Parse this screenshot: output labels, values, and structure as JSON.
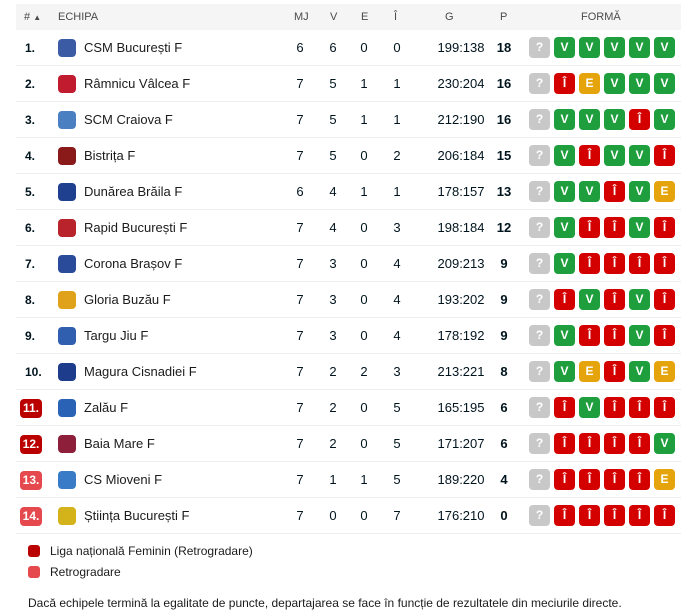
{
  "header": {
    "rank": "#",
    "sort_icon": "▲",
    "team": "ECHIPA",
    "mj": "MJ",
    "v": "V",
    "e": "E",
    "i": "Î",
    "g": "G",
    "p": "P",
    "form": "FORMĂ"
  },
  "form_symbols": {
    "V": "V",
    "I": "Î",
    "E": "E",
    "Q": "?"
  },
  "rows": [
    {
      "rank": "1.",
      "team": "CSM București F",
      "mj": "6",
      "v": "6",
      "e": "0",
      "i": "0",
      "g": "199:138",
      "p": "18",
      "form": [
        "?",
        "V",
        "V",
        "V",
        "V",
        "V"
      ],
      "logo_color": "#3b5ba5",
      "badge": ""
    },
    {
      "rank": "2.",
      "team": "Râmnicu Vâlcea F",
      "mj": "7",
      "v": "5",
      "e": "1",
      "i": "1",
      "g": "230:204",
      "p": "16",
      "form": [
        "?",
        "Î",
        "E",
        "V",
        "V",
        "V"
      ],
      "logo_color": "#c01b2e",
      "badge": ""
    },
    {
      "rank": "3.",
      "team": "SCM Craiova F",
      "mj": "7",
      "v": "5",
      "e": "1",
      "i": "1",
      "g": "212:190",
      "p": "16",
      "form": [
        "?",
        "V",
        "V",
        "V",
        "Î",
        "V"
      ],
      "logo_color": "#4a7fc1",
      "badge": ""
    },
    {
      "rank": "4.",
      "team": "Bistrița F",
      "mj": "7",
      "v": "5",
      "e": "0",
      "i": "2",
      "g": "206:184",
      "p": "15",
      "form": [
        "?",
        "V",
        "Î",
        "V",
        "V",
        "Î"
      ],
      "logo_color": "#8a1a1a",
      "badge": ""
    },
    {
      "rank": "5.",
      "team": "Dunărea Brăila F",
      "mj": "6",
      "v": "4",
      "e": "1",
      "i": "1",
      "g": "178:157",
      "p": "13",
      "form": [
        "?",
        "V",
        "V",
        "Î",
        "V",
        "E"
      ],
      "logo_color": "#1f3f8f",
      "badge": ""
    },
    {
      "rank": "6.",
      "team": "Rapid București F",
      "mj": "7",
      "v": "4",
      "e": "0",
      "i": "3",
      "g": "198:184",
      "p": "12",
      "form": [
        "?",
        "V",
        "Î",
        "Î",
        "V",
        "Î"
      ],
      "logo_color": "#b8232c",
      "badge": ""
    },
    {
      "rank": "7.",
      "team": "Corona Brașov F",
      "mj": "7",
      "v": "3",
      "e": "0",
      "i": "4",
      "g": "209:213",
      "p": "9",
      "form": [
        "?",
        "V",
        "Î",
        "Î",
        "Î",
        "Î"
      ],
      "logo_color": "#2a4a9a",
      "badge": ""
    },
    {
      "rank": "8.",
      "team": "Gloria Buzău F",
      "mj": "7",
      "v": "3",
      "e": "0",
      "i": "4",
      "g": "193:202",
      "p": "9",
      "form": [
        "?",
        "Î",
        "V",
        "Î",
        "V",
        "Î"
      ],
      "logo_color": "#e0a21b",
      "badge": ""
    },
    {
      "rank": "9.",
      "team": "Targu Jiu F",
      "mj": "7",
      "v": "3",
      "e": "0",
      "i": "4",
      "g": "178:192",
      "p": "9",
      "form": [
        "?",
        "V",
        "Î",
        "Î",
        "V",
        "Î"
      ],
      "logo_color": "#2f5fae",
      "badge": ""
    },
    {
      "rank": "10.",
      "team": "Magura Cisnadiei F",
      "mj": "7",
      "v": "2",
      "e": "2",
      "i": "3",
      "g": "213:221",
      "p": "8",
      "form": [
        "?",
        "V",
        "E",
        "Î",
        "V",
        "E"
      ],
      "logo_color": "#1d3c8c",
      "badge": ""
    },
    {
      "rank": "11.",
      "team": "Zalău F",
      "mj": "7",
      "v": "2",
      "e": "0",
      "i": "5",
      "g": "165:195",
      "p": "6",
      "form": [
        "?",
        "Î",
        "V",
        "Î",
        "Î",
        "Î"
      ],
      "logo_color": "#2a62b5",
      "badge": "dark"
    },
    {
      "rank": "12.",
      "team": "Baia Mare F",
      "mj": "7",
      "v": "2",
      "e": "0",
      "i": "5",
      "g": "171:207",
      "p": "6",
      "form": [
        "?",
        "Î",
        "Î",
        "Î",
        "Î",
        "V"
      ],
      "logo_color": "#8d1f3a",
      "badge": "dark"
    },
    {
      "rank": "13.",
      "team": "CS Mioveni F",
      "mj": "7",
      "v": "1",
      "e": "1",
      "i": "5",
      "g": "189:220",
      "p": "4",
      "form": [
        "?",
        "Î",
        "Î",
        "Î",
        "Î",
        "E"
      ],
      "logo_color": "#3a7bc8",
      "badge": "light"
    },
    {
      "rank": "14.",
      "team": "Știința București F",
      "mj": "7",
      "v": "0",
      "e": "0",
      "i": "7",
      "g": "176:210",
      "p": "0",
      "form": [
        "?",
        "Î",
        "Î",
        "Î",
        "Î",
        "Î"
      ],
      "logo_color": "#d4b21a",
      "badge": "light"
    }
  ],
  "legend": [
    {
      "label": "Liga națională Feminin (Retrogradare)",
      "color": "#bb0000"
    },
    {
      "label": "Retrogradare",
      "color": "#e5484d"
    }
  ],
  "note": "Dacă echipele termină la egalitate de puncte, departajarea se face în funcție de rezultatele din meciurile directe."
}
